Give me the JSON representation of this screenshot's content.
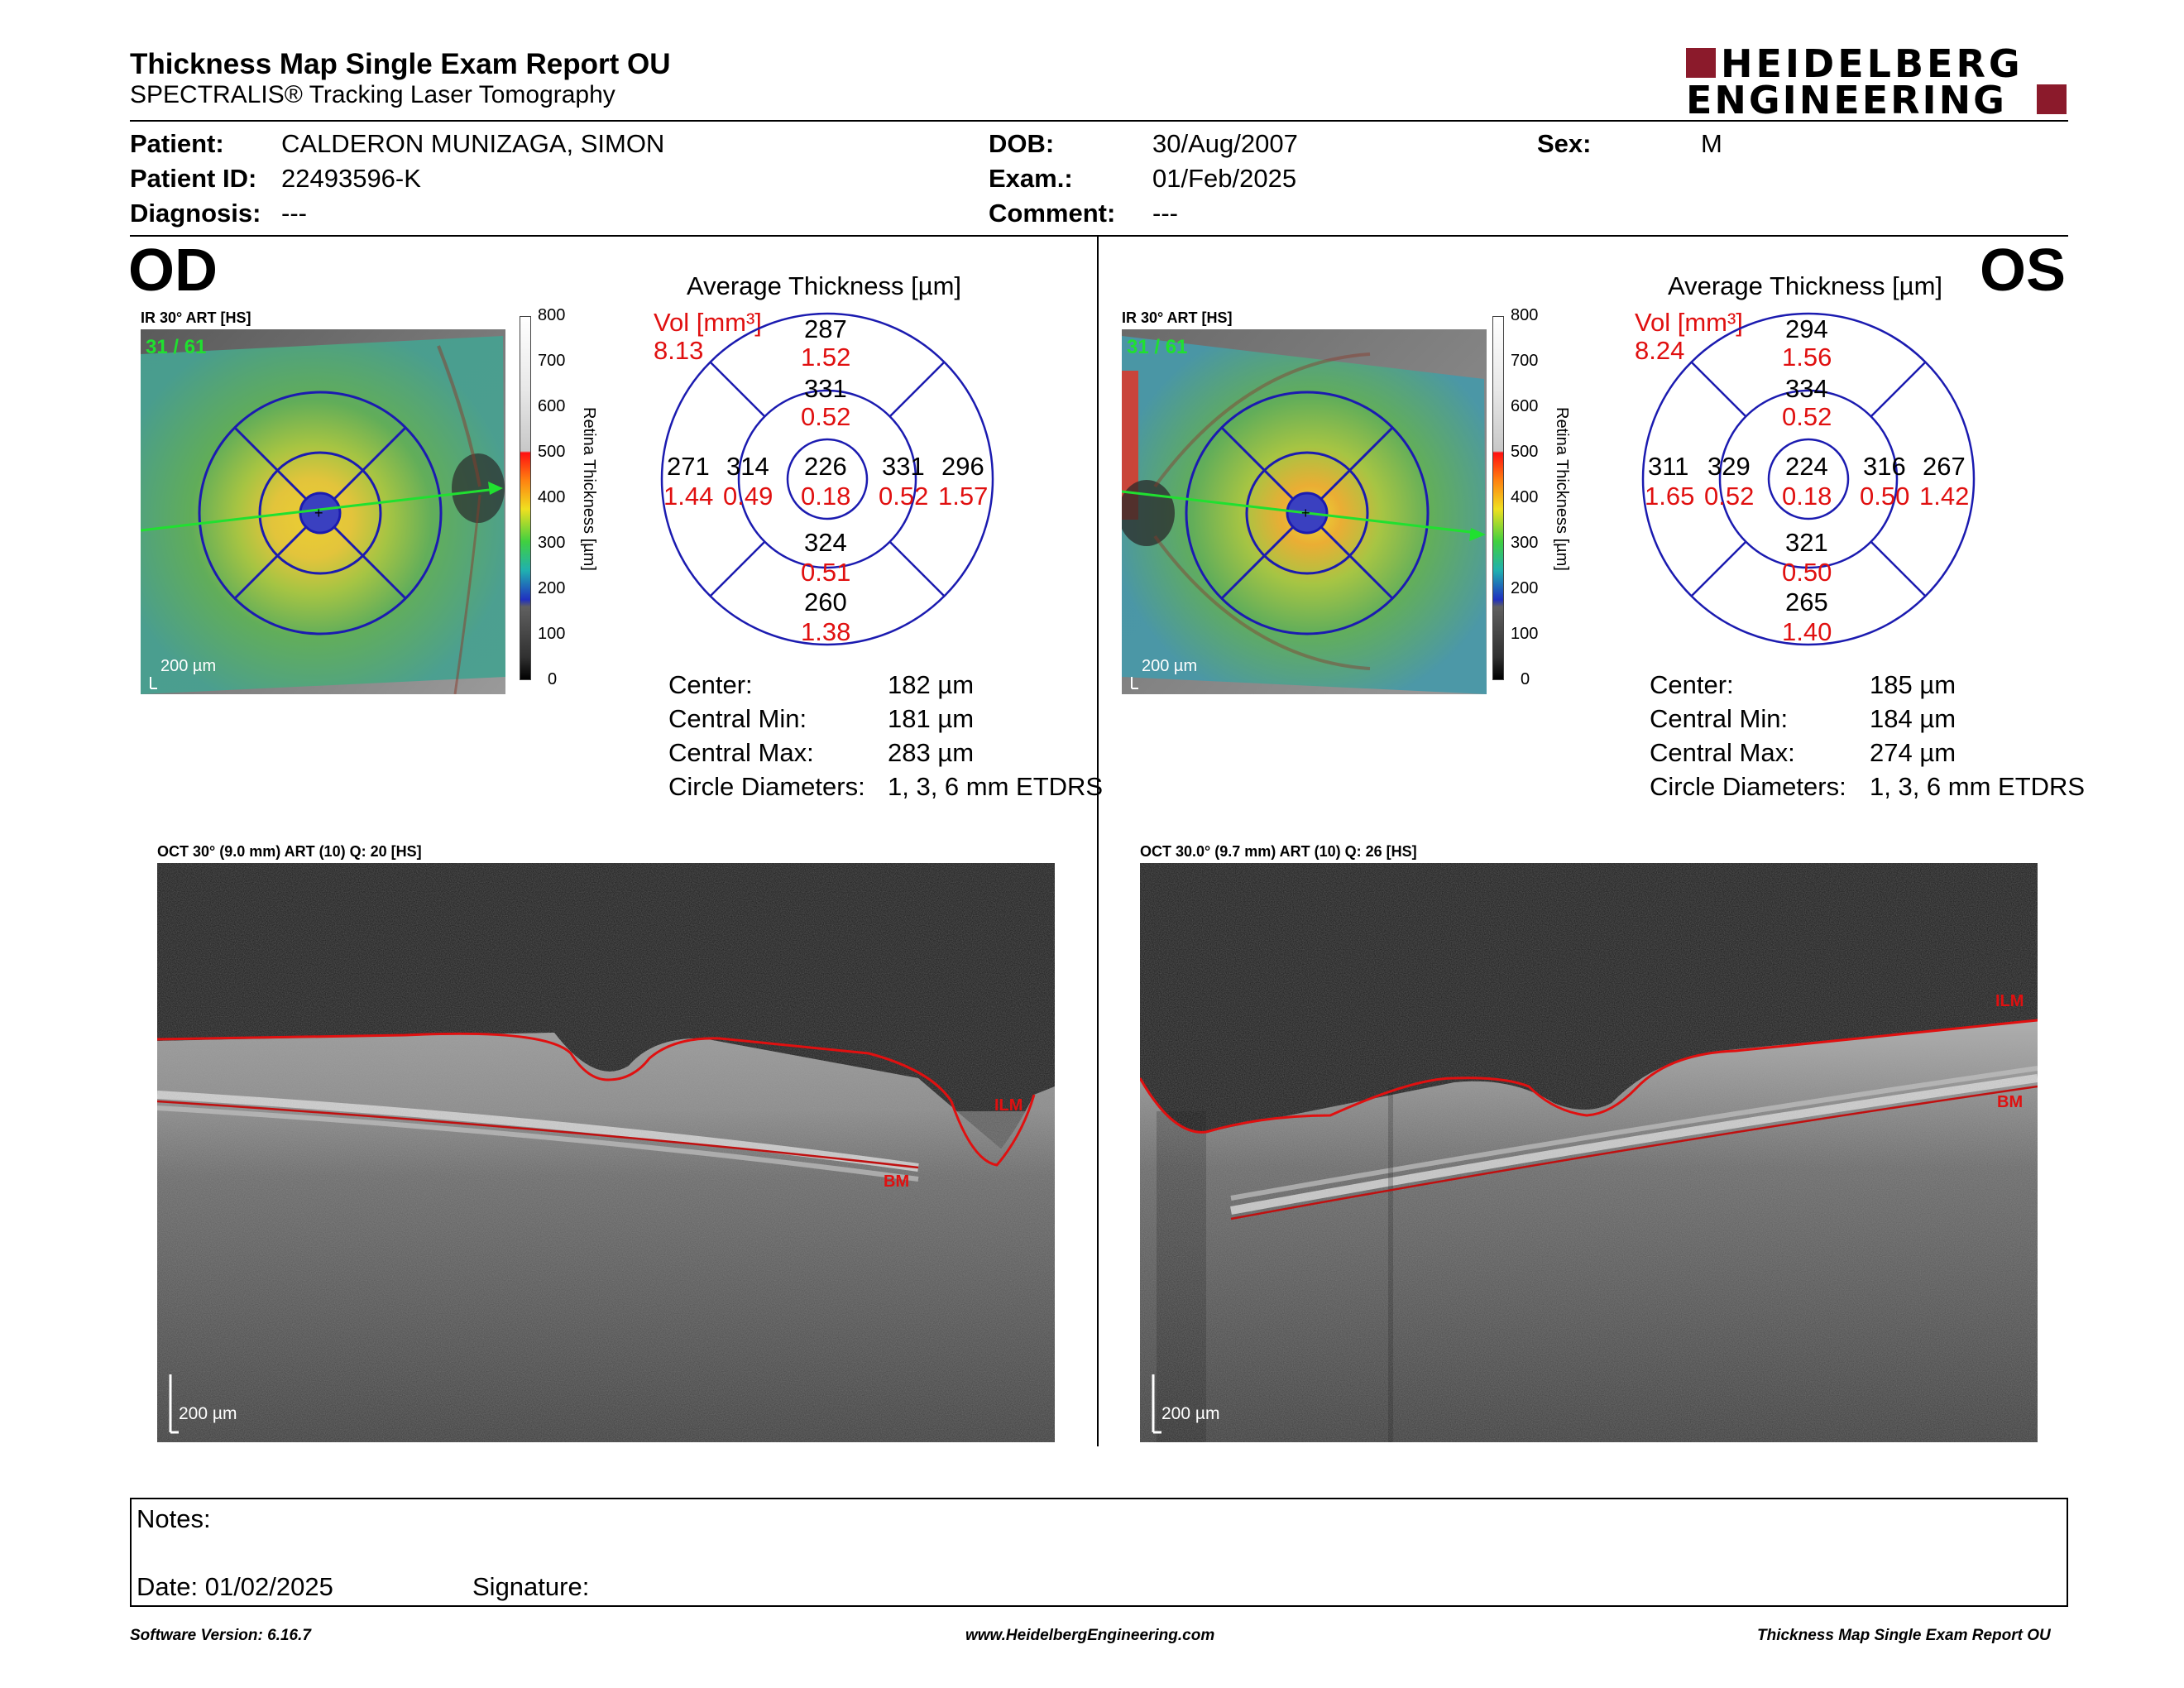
{
  "report": {
    "title": "Thickness Map Single Exam Report OU",
    "subtitle": "SPECTRALIS® Tracking Laser Tomography",
    "logo_line1": "HEIDELBERG",
    "logo_line2": "ENGINEERING"
  },
  "patient": {
    "patient_label": "Patient:",
    "patient_value": "CALDERON MUNIZAGA, SIMON",
    "id_label": "Patient ID:",
    "id_value": "22493596-K",
    "diagnosis_label": "Diagnosis:",
    "diagnosis_value": "---",
    "dob_label": "DOB:",
    "dob_value": "30/Aug/2007",
    "exam_label": "Exam.:",
    "exam_value": "01/Feb/2025",
    "comment_label": "Comment:",
    "comment_value": "---",
    "sex_label": "Sex:",
    "sex_value": "M"
  },
  "od": {
    "eye": "OD",
    "ir_label": "IR 30° ART [HS]",
    "frame_count": "31 / 61",
    "scale_label": "200 µm",
    "avg_title": "Average Thickness [µm]",
    "vol_label": "Vol [mm³]",
    "vol_value": "8.13",
    "grid": {
      "center_t": "226",
      "center_v": "0.18",
      "inner_sup_t": "331",
      "inner_sup_v": "0.52",
      "inner_inf_t": "324",
      "inner_inf_v": "0.51",
      "inner_left_t": "314",
      "inner_left_v": "0.49",
      "inner_right_t": "331",
      "inner_right_v": "0.52",
      "outer_sup_t": "287",
      "outer_sup_v": "1.52",
      "outer_inf_t": "260",
      "outer_inf_v": "1.38",
      "outer_left_t": "271",
      "outer_left_v": "1.44",
      "outer_right_t": "296",
      "outer_right_v": "1.57"
    },
    "stats": {
      "center_label": "Center:",
      "center_value": "182 µm",
      "min_label": "Central Min:",
      "min_value": "181 µm",
      "max_label": "Central Max:",
      "max_value": "283 µm",
      "diam_label": "Circle Diameters:",
      "diam_value": "1, 3, 6 mm ETDRS"
    },
    "oct_label": "OCT 30° (9.0 mm) ART (10) Q: 20 [HS]",
    "oct_scale": "200 µm",
    "ilm": "ILM",
    "bm": "BM"
  },
  "os": {
    "eye": "OS",
    "ir_label": "IR 30° ART [HS]",
    "frame_count": "31 / 61",
    "scale_label": "200 µm",
    "avg_title": "Average Thickness [µm]",
    "vol_label": "Vol [mm³]",
    "vol_value": "8.24",
    "grid": {
      "center_t": "224",
      "center_v": "0.18",
      "inner_sup_t": "334",
      "inner_sup_v": "0.52",
      "inner_inf_t": "321",
      "inner_inf_v": "0.50",
      "inner_left_t": "329",
      "inner_left_v": "0.52",
      "inner_right_t": "316",
      "inner_right_v": "0.50",
      "outer_sup_t": "294",
      "outer_sup_v": "1.56",
      "outer_inf_t": "265",
      "outer_inf_v": "1.40",
      "outer_left_t": "311",
      "outer_left_v": "1.65",
      "outer_right_t": "267",
      "outer_right_v": "1.42"
    },
    "stats": {
      "center_label": "Center:",
      "center_value": "185 µm",
      "min_label": "Central Min:",
      "min_value": "184 µm",
      "max_label": "Central Max:",
      "max_value": "274 µm",
      "diam_label": "Circle Diameters:",
      "diam_value": "1, 3, 6 mm ETDRS"
    },
    "oct_label": "OCT 30.0° (9.7 mm) ART (10) Q: 26 [HS]",
    "oct_scale": "200 µm",
    "ilm": "ILM",
    "bm": "BM"
  },
  "colorbar": {
    "ticks": [
      "800",
      "700",
      "600",
      "500",
      "400",
      "300",
      "200",
      "100",
      "0"
    ],
    "label": "Retina Thickness [µm]"
  },
  "notes": {
    "notes_label": "Notes:",
    "date_label": "Date: 01/02/2025",
    "signature_label": "Signature:"
  },
  "footer": {
    "software": "Software Version: 6.16.7",
    "website": "www.HeidelbergEngineering.com",
    "report_name": "Thickness Map Single Exam Report OU"
  }
}
